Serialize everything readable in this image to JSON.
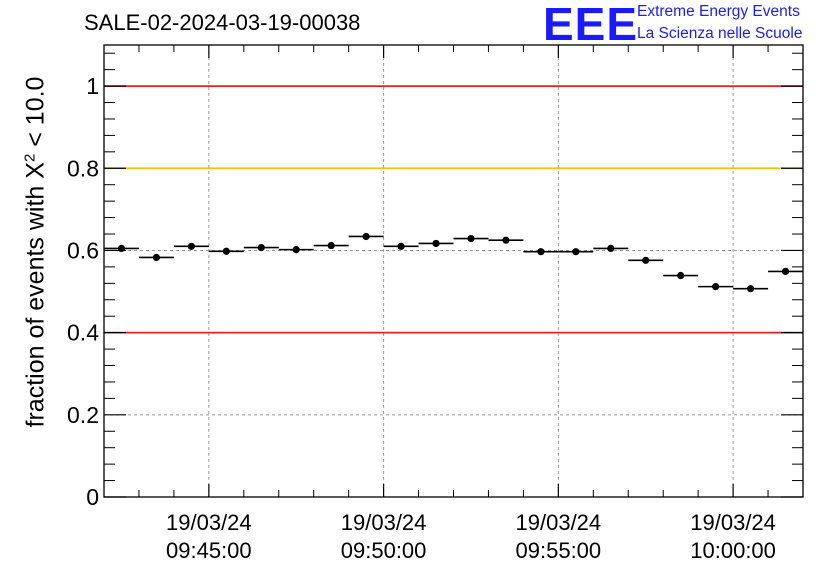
{
  "header": {
    "title": "SALE-02-2024-03-19-00038",
    "logo_text": "EEE",
    "logo_line1": "Extreme Energy Events",
    "logo_line2": "La Scienza nelle Scuole"
  },
  "colors": {
    "marker": "#000000",
    "red_line": "#e8221c",
    "orange_line": "#ffc000",
    "logo": "#1a1aff",
    "grid": "#9a9a9a"
  },
  "chart_data": {
    "type": "scatter",
    "title": "SALE-02-2024-03-19-00038",
    "ylabel_prefix": "fraction of events with ",
    "ylabel_symbol": "X",
    "ylabel_sup": "2",
    "ylabel_suffix": " < 10.0",
    "xlim": [
      "09:42:00",
      "10:02:00"
    ],
    "ylim": [
      0,
      1.1
    ],
    "yticks": [
      {
        "value": 0,
        "label": "0"
      },
      {
        "value": 0.2,
        "label": "0.2"
      },
      {
        "value": 0.4,
        "label": "0.4"
      },
      {
        "value": 0.6,
        "label": "0.6"
      },
      {
        "value": 0.8,
        "label": "0.8"
      },
      {
        "value": 1.0,
        "label": "1"
      }
    ],
    "xticks": [
      {
        "value": "09:45:00",
        "date": "19/03/24",
        "time": "09:45:00"
      },
      {
        "value": "09:50:00",
        "date": "19/03/24",
        "time": "09:50:00"
      },
      {
        "value": "09:55:00",
        "date": "19/03/24",
        "time": "09:55:00"
      },
      {
        "value": "10:00:00",
        "date": "19/03/24",
        "time": "10:00:00"
      }
    ],
    "reference_lines": [
      {
        "y": 1.0,
        "color": "#e8221c"
      },
      {
        "y": 0.8,
        "color": "#ffc000"
      },
      {
        "y": 0.4,
        "color": "#e8221c"
      }
    ],
    "grid": true,
    "bin_width_seconds": 60,
    "points": [
      {
        "x": "09:42:30",
        "y": 0.605
      },
      {
        "x": "09:43:30",
        "y": 0.583
      },
      {
        "x": "09:44:30",
        "y": 0.61
      },
      {
        "x": "09:45:30",
        "y": 0.598
      },
      {
        "x": "09:46:30",
        "y": 0.607
      },
      {
        "x": "09:47:30",
        "y": 0.602
      },
      {
        "x": "09:48:30",
        "y": 0.612
      },
      {
        "x": "09:49:30",
        "y": 0.634
      },
      {
        "x": "09:50:30",
        "y": 0.61
      },
      {
        "x": "09:51:30",
        "y": 0.617
      },
      {
        "x": "09:52:30",
        "y": 0.629
      },
      {
        "x": "09:53:30",
        "y": 0.625
      },
      {
        "x": "09:54:30",
        "y": 0.597
      },
      {
        "x": "09:55:30",
        "y": 0.597
      },
      {
        "x": "09:56:30",
        "y": 0.605
      },
      {
        "x": "09:57:30",
        "y": 0.576
      },
      {
        "x": "09:58:30",
        "y": 0.539
      },
      {
        "x": "09:59:30",
        "y": 0.512
      },
      {
        "x": "10:00:30",
        "y": 0.507
      },
      {
        "x": "10:01:30",
        "y": 0.549
      }
    ]
  }
}
